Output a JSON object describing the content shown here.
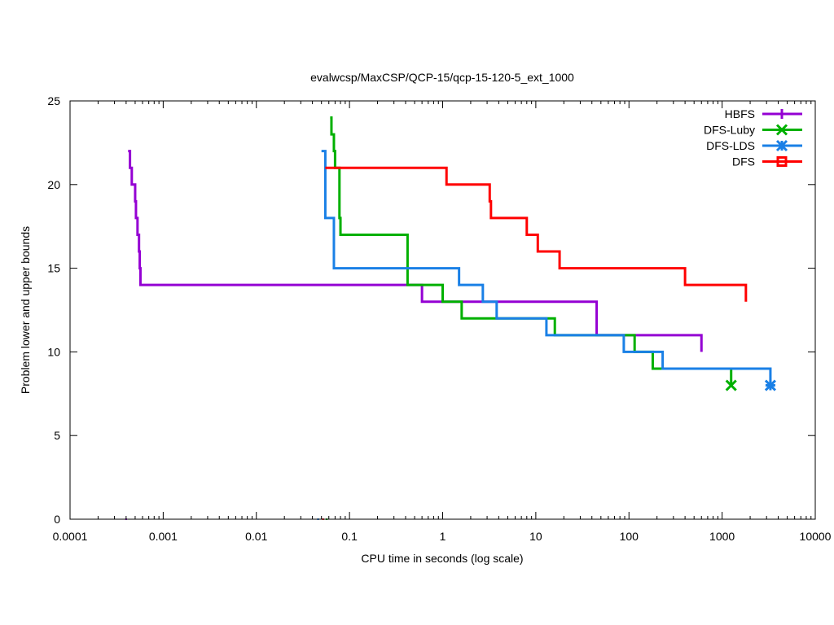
{
  "chart_data": {
    "type": "line",
    "title": "evalwcsp/MaxCSP/QCP-15/qcp-15-120-5_ext_1000",
    "xlabel": "CPU time in seconds (log scale)",
    "ylabel": "Problem lower and upper bounds",
    "x_scale": "log",
    "xlim": [
      0.0001,
      10000
    ],
    "ylim": [
      0,
      25
    ],
    "x_ticks": [
      0.0001,
      0.001,
      0.01,
      0.1,
      1,
      10,
      100,
      1000,
      10000
    ],
    "x_tick_labels": [
      "0.0001",
      "0.001",
      "0.01",
      "0.1",
      "1",
      "10",
      "100",
      "1000",
      "10000"
    ],
    "y_ticks": [
      0,
      5,
      10,
      15,
      20,
      25
    ],
    "y_tick_labels": [
      "0",
      "5",
      "10",
      "15",
      "20",
      "25"
    ],
    "grid": false,
    "legend_position": "top-right",
    "series": [
      {
        "name": "HBFS",
        "color": "#9400d3",
        "marker": "plus",
        "x": [
          0.00042,
          0.00044,
          0.00046,
          0.0005,
          0.00051,
          0.00053,
          0.00055,
          0.00056,
          0.00057,
          0.6,
          1.0,
          45,
          600
        ],
        "y": [
          22,
          21,
          20,
          19,
          18,
          17,
          16,
          15,
          14,
          13,
          13,
          11,
          10
        ],
        "lower_bound": {
          "x": 0.0004,
          "y": 0
        }
      },
      {
        "name": "DFS-Luby",
        "color": "#00b000",
        "marker": "x",
        "x": [
          0.062,
          0.064,
          0.068,
          0.07,
          0.078,
          0.08,
          0.42,
          1.0,
          1.6,
          16,
          115,
          180,
          1250
        ],
        "y": [
          24,
          23,
          22,
          21,
          18,
          17,
          14,
          13,
          12,
          11,
          10,
          9,
          8
        ],
        "lower_bound": {
          "x": 0.057,
          "y": 0
        }
      },
      {
        "name": "DFS-LDS",
        "color": "#1a80e6",
        "marker": "star",
        "x": [
          0.05,
          0.055,
          0.068,
          1.5,
          2.7,
          3.8,
          13,
          88,
          230,
          3300
        ],
        "y": [
          22,
          18,
          15,
          14,
          13,
          12,
          11,
          10,
          9,
          8
        ],
        "lower_bound": {
          "x": 0.046,
          "y": 0
        }
      },
      {
        "name": "DFS",
        "color": "#ff0000",
        "marker": "box",
        "x": [
          0.055,
          1.1,
          3.2,
          3.3,
          8.0,
          10.5,
          18,
          400,
          1800
        ],
        "y": [
          21,
          20,
          19,
          18,
          17,
          16,
          15,
          14,
          13
        ],
        "lower_bound": {
          "x": 0.052,
          "y": 0
        }
      }
    ]
  }
}
